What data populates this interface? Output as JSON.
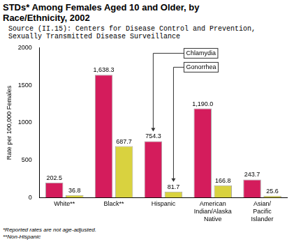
{
  "chart_data": {
    "type": "bar",
    "title": "STDs* Among Females Aged 10 and Older, by Race/Ethnicity, 2002",
    "subtitle": "Source (II.15): Centers for Disease Control and Prevention, Sexually Transmitted Disease Surveillance",
    "y_label": "Rate per 100,000 Females",
    "categories": [
      "White**",
      "Black**",
      "Hispanic",
      "American Indian/Alaska Native",
      "Asian/ Pacific Islander"
    ],
    "series": [
      {
        "name": "Chlamydia",
        "color": "#d41c5c",
        "values": [
          202.5,
          1638.3,
          754.3,
          1190.0,
          243.7
        ],
        "value_labels": [
          "202.5",
          "1,638.3",
          "754.3",
          "1,190.0",
          "243.7"
        ]
      },
      {
        "name": "Gonorrhea",
        "color": "#d9d23f",
        "values": [
          36.8,
          687.7,
          81.7,
          166.8,
          25.6
        ],
        "value_labels": [
          "36.8",
          "687.7",
          "81.7",
          "166.8",
          "25.6"
        ]
      }
    ],
    "ylim": [
      0,
      2000
    ],
    "yticks": [
      0,
      500,
      1000,
      1500,
      2000
    ],
    "grid": false,
    "data_labels": true,
    "annotations": [
      "*Reported rates are not age-adjusted.",
      "**Non-Hispanic"
    ]
  }
}
